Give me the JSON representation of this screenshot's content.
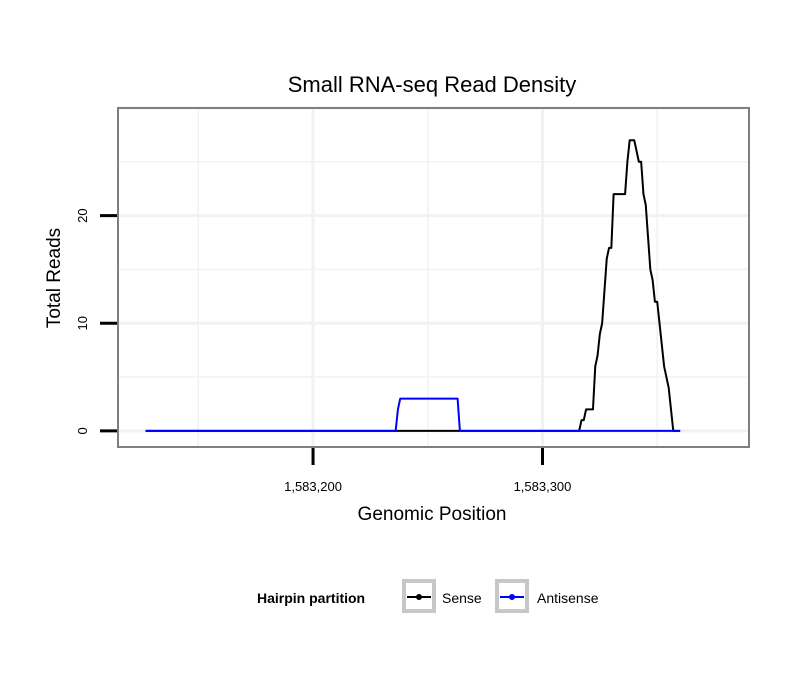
{
  "chart_data": {
    "type": "line",
    "title": "Small RNA-seq Read Density",
    "xlabel": "Genomic Position",
    "ylabel": "Total Reads",
    "xlim": [
      1583115,
      1583390
    ],
    "ylim": [
      -1.5,
      30
    ],
    "x_ticks": [
      1583200,
      1583300
    ],
    "x_tick_labels": [
      "1,583,200",
      "1,583,300"
    ],
    "y_ticks": [
      0,
      10,
      20
    ],
    "y_tick_labels": [
      "0",
      "10",
      "20"
    ],
    "grid": true,
    "legend": {
      "title": "Hairpin partition",
      "position": "bottom",
      "entries": [
        {
          "label": "Sense",
          "color": "#000000"
        },
        {
          "label": "Antisense",
          "color": "#0000ff"
        }
      ]
    },
    "series": [
      {
        "name": "Sense",
        "color": "#000000",
        "points": [
          [
            1583127,
            0
          ],
          [
            1583316,
            0
          ],
          [
            1583317,
            1
          ],
          [
            1583318,
            1
          ],
          [
            1583319,
            2
          ],
          [
            1583322,
            2
          ],
          [
            1583323,
            6
          ],
          [
            1583324,
            7
          ],
          [
            1583325,
            9
          ],
          [
            1583326,
            10
          ],
          [
            1583327,
            13
          ],
          [
            1583328,
            16
          ],
          [
            1583329,
            17
          ],
          [
            1583330,
            17
          ],
          [
            1583331,
            22
          ],
          [
            1583336,
            22
          ],
          [
            1583337,
            25
          ],
          [
            1583338,
            27
          ],
          [
            1583340,
            27
          ],
          [
            1583341,
            26
          ],
          [
            1583342,
            25
          ],
          [
            1583343,
            25
          ],
          [
            1583344,
            22
          ],
          [
            1583345,
            21
          ],
          [
            1583346,
            18
          ],
          [
            1583347,
            15
          ],
          [
            1583348,
            14
          ],
          [
            1583349,
            12
          ],
          [
            1583350,
            12
          ],
          [
            1583351,
            10
          ],
          [
            1583352,
            8
          ],
          [
            1583353,
            6
          ],
          [
            1583354,
            5
          ],
          [
            1583355,
            4
          ],
          [
            1583356,
            2
          ],
          [
            1583357,
            0
          ],
          [
            1583360,
            0
          ]
        ]
      },
      {
        "name": "Antisense",
        "color": "#0000ff",
        "points": [
          [
            1583127,
            0
          ],
          [
            1583236,
            0
          ],
          [
            1583237,
            2
          ],
          [
            1583238,
            3
          ],
          [
            1583263,
            3
          ],
          [
            1583264,
            0
          ],
          [
            1583360,
            0
          ]
        ]
      }
    ]
  }
}
